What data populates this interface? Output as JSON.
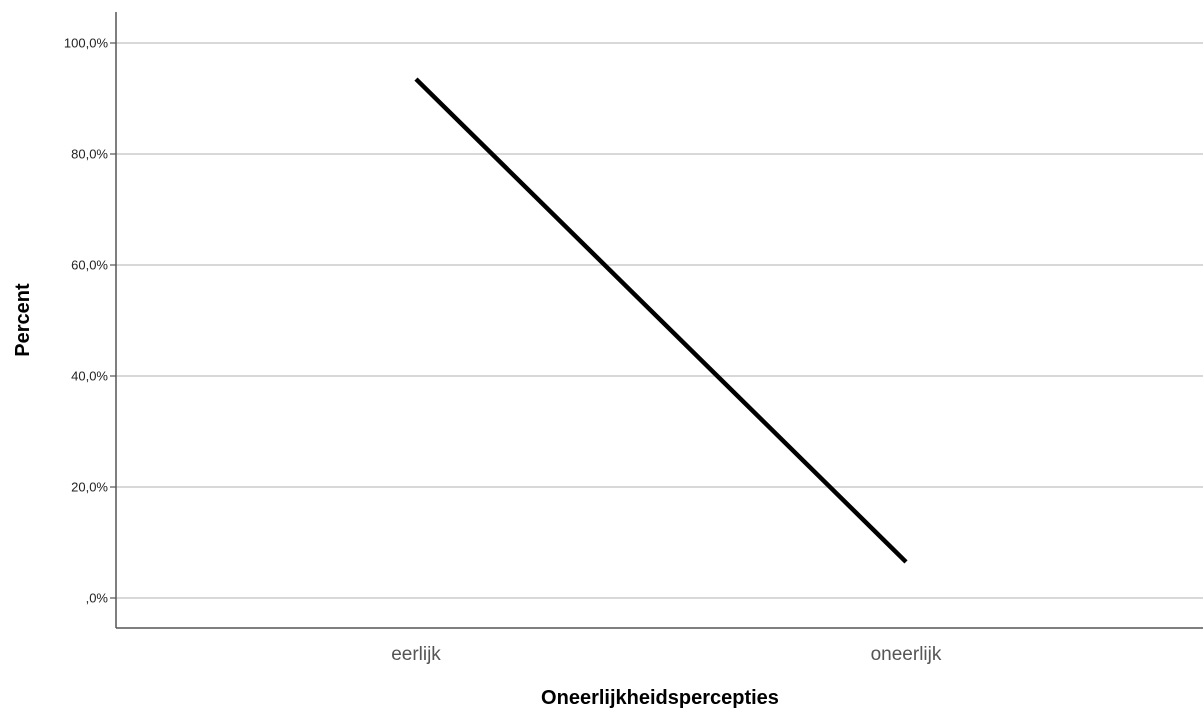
{
  "chart_data": {
    "type": "line",
    "title": "",
    "xlabel": "Oneerlijkheidspercepties",
    "ylabel": "Percent",
    "categories": [
      "eerlijk",
      "oneerlijk"
    ],
    "series": [
      {
        "values": [
          93.5,
          6.5
        ]
      }
    ],
    "ylim": [
      0,
      100
    ],
    "yticks": [
      0,
      20,
      40,
      60,
      80,
      100
    ],
    "ytick_labels": [
      ",0%",
      "20,0%",
      "40,0%",
      "60,0%",
      "80,0%",
      "100,0%"
    ],
    "grid": "horizontal",
    "line_color": "#000000",
    "grid_color": "#cccccc"
  }
}
